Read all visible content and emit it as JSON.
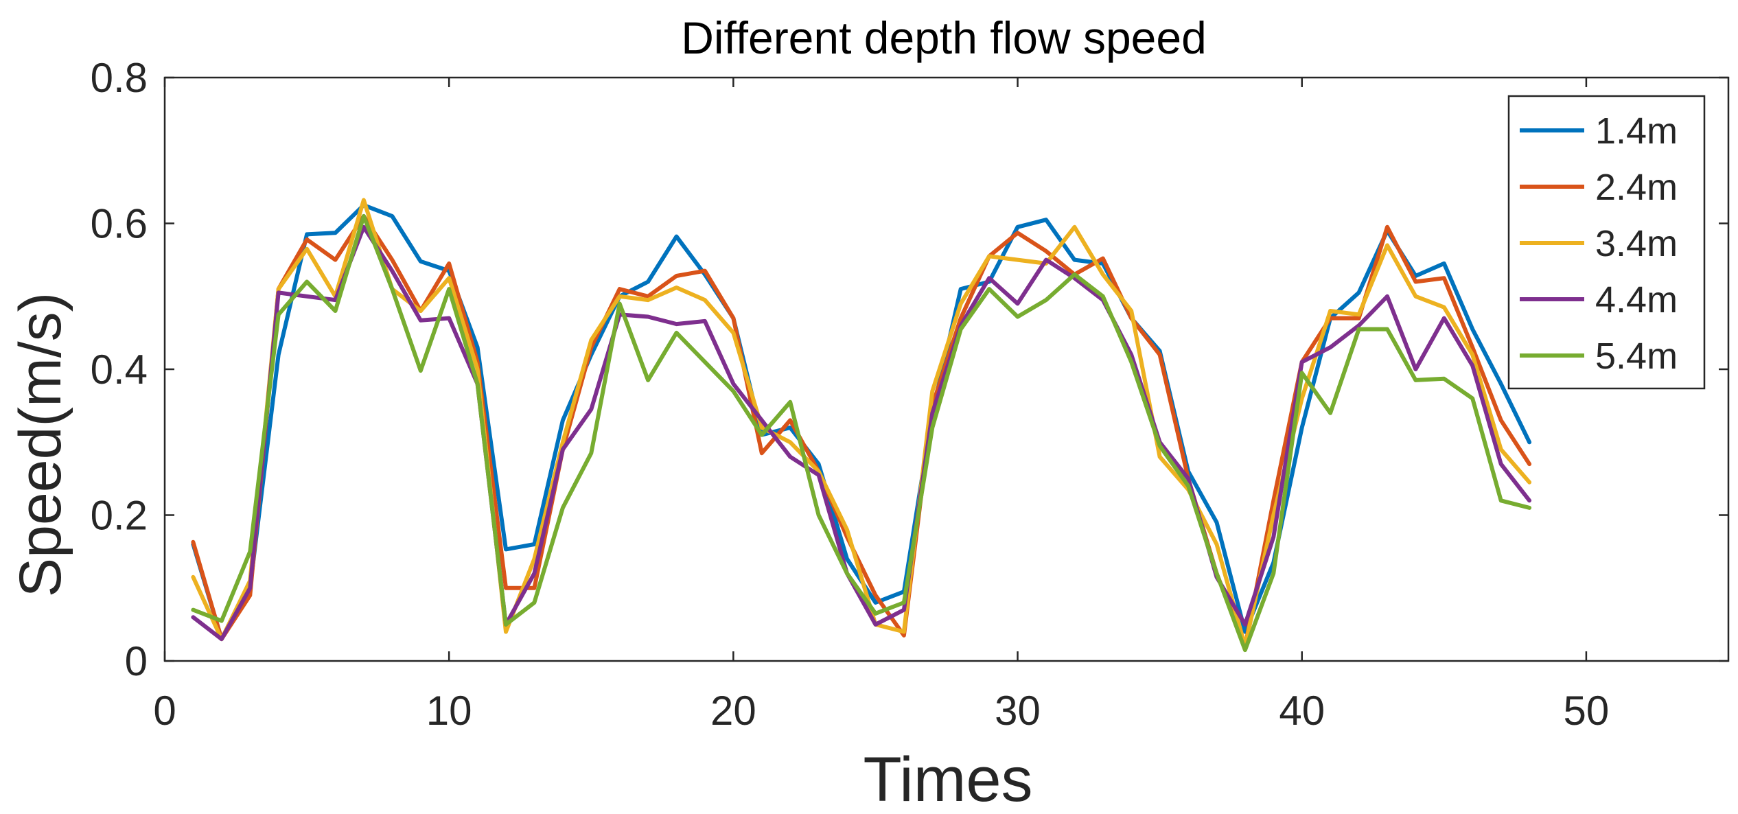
{
  "chart_data": {
    "type": "line",
    "title": "Different depth flow speed",
    "xlabel": "Times",
    "ylabel": "Speed(m/s)",
    "xlim": [
      0,
      55
    ],
    "ylim": [
      0,
      0.8
    ],
    "xticks": [
      0,
      10,
      20,
      30,
      40,
      50
    ],
    "xtick_labels": [
      "0",
      "10",
      "20",
      "30",
      "40",
      "50"
    ],
    "yticks": [
      0,
      0.2,
      0.4,
      0.6,
      0.8
    ],
    "ytick_labels": [
      "0",
      "0.2",
      "0.4",
      "0.6",
      "0.8"
    ],
    "grid": false,
    "legend_position": "top-right",
    "x": [
      1,
      2,
      3,
      4,
      5,
      6,
      7,
      8,
      9,
      10,
      11,
      12,
      13,
      14,
      15,
      16,
      17,
      18,
      19,
      20,
      21,
      22,
      23,
      24,
      25,
      26,
      27,
      28,
      29,
      30,
      31,
      32,
      33,
      34,
      35,
      36,
      37,
      38,
      39,
      40,
      41,
      42,
      43,
      44,
      45,
      46,
      47,
      48
    ],
    "series": [
      {
        "name": "1.4m",
        "color": "#0072BD",
        "values": [
          0.16,
          0.03,
          0.1,
          0.42,
          0.585,
          0.587,
          0.625,
          0.61,
          0.548,
          0.535,
          0.43,
          0.153,
          0.16,
          0.33,
          0.42,
          0.5,
          0.52,
          0.582,
          0.53,
          0.47,
          0.31,
          0.32,
          0.27,
          0.14,
          0.08,
          0.095,
          0.34,
          0.51,
          0.52,
          0.595,
          0.605,
          0.55,
          0.545,
          0.47,
          0.425,
          0.26,
          0.19,
          0.04,
          0.135,
          0.32,
          0.47,
          0.505,
          0.59,
          0.528,
          0.545,
          0.455,
          0.38,
          0.3
        ]
      },
      {
        "name": "2.4m",
        "color": "#D95319",
        "values": [
          0.163,
          0.03,
          0.09,
          0.51,
          0.578,
          0.55,
          0.61,
          0.55,
          0.48,
          0.545,
          0.41,
          0.1,
          0.1,
          0.29,
          0.43,
          0.51,
          0.5,
          0.528,
          0.535,
          0.47,
          0.285,
          0.33,
          0.26,
          0.17,
          0.09,
          0.035,
          0.35,
          0.47,
          0.555,
          0.587,
          0.562,
          0.53,
          0.552,
          0.47,
          0.42,
          0.25,
          0.12,
          0.02,
          0.22,
          0.41,
          0.47,
          0.47,
          0.595,
          0.52,
          0.525,
          0.43,
          0.33,
          0.27
        ]
      },
      {
        "name": "3.4m",
        "color": "#EDB120",
        "values": [
          0.115,
          0.03,
          0.11,
          0.51,
          0.565,
          0.5,
          0.632,
          0.51,
          0.48,
          0.525,
          0.4,
          0.04,
          0.14,
          0.3,
          0.44,
          0.5,
          0.495,
          0.512,
          0.495,
          0.45,
          0.32,
          0.3,
          0.26,
          0.18,
          0.05,
          0.04,
          0.37,
          0.49,
          0.555,
          0.55,
          0.545,
          0.595,
          0.53,
          0.48,
          0.28,
          0.235,
          0.16,
          0.02,
          0.2,
          0.36,
          0.48,
          0.475,
          0.57,
          0.5,
          0.485,
          0.42,
          0.29,
          0.245
        ]
      },
      {
        "name": "4.4m",
        "color": "#7E2F8E",
        "values": [
          0.06,
          0.03,
          0.1,
          0.505,
          0.5,
          0.495,
          0.595,
          0.535,
          0.467,
          0.47,
          0.38,
          0.05,
          0.12,
          0.29,
          0.345,
          0.475,
          0.472,
          0.462,
          0.466,
          0.38,
          0.33,
          0.28,
          0.255,
          0.12,
          0.05,
          0.07,
          0.34,
          0.46,
          0.525,
          0.49,
          0.55,
          0.525,
          0.495,
          0.42,
          0.3,
          0.25,
          0.115,
          0.05,
          0.17,
          0.41,
          0.43,
          0.46,
          0.5,
          0.4,
          0.47,
          0.405,
          0.27,
          0.22
        ]
      },
      {
        "name": "5.4m",
        "color": "#77AC30",
        "values": [
          0.07,
          0.055,
          0.15,
          0.475,
          0.52,
          0.48,
          0.61,
          0.51,
          0.398,
          0.51,
          0.38,
          0.05,
          0.08,
          0.21,
          0.285,
          0.49,
          0.385,
          0.45,
          0.41,
          0.37,
          0.31,
          0.355,
          0.2,
          0.12,
          0.065,
          0.08,
          0.32,
          0.455,
          0.51,
          0.472,
          0.495,
          0.53,
          0.5,
          0.41,
          0.295,
          0.24,
          0.12,
          0.015,
          0.12,
          0.395,
          0.34,
          0.455,
          0.455,
          0.385,
          0.387,
          0.36,
          0.22,
          0.21
        ]
      }
    ]
  }
}
